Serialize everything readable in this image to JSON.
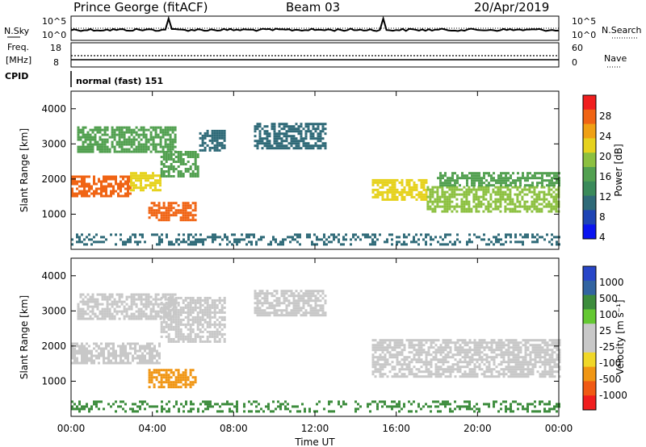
{
  "header": {
    "station": "Prince George (fitACF)",
    "beam": "Beam 03",
    "date": "20/Apr/2019"
  },
  "top_panels": {
    "nsky_label": "N.Sky",
    "nsky_ticks": [
      "10^5",
      "10^0"
    ],
    "nsearch_label": "N.Search",
    "nsearch_ticks": [
      "10^5",
      "10^0"
    ],
    "freq_label_1": "Freq.",
    "freq_label_2": "[MHz]",
    "freq_ticks": [
      "18",
      "8"
    ],
    "nave_label": "Nave",
    "nave_ticks": [
      "60",
      "0"
    ],
    "cpid_label": "CPID",
    "cpid_text": "normal (fast) 151"
  },
  "colors": {
    "power_scale": [
      "#0a14f0",
      "#1e44b4",
      "#2f6a78",
      "#3a8a5a",
      "#52a050",
      "#8cc040",
      "#e6d21e",
      "#f0a014",
      "#f06414",
      "#f01e1e"
    ],
    "velocity_scale": [
      "#2846c8",
      "#3264a0",
      "#3c8c3c",
      "#64c832",
      "#c8c8c8",
      "#c8c8c8",
      "#f0d728",
      "#f09614",
      "#f05a14",
      "#f01e1e"
    ]
  },
  "chart_data": [
    {
      "type": "heatmap",
      "panel": "power",
      "ylabel": "Slant Range [km]",
      "colorbar_label": "Power [dB]",
      "colorbar_ticks": [
        "28",
        "24",
        "20",
        "16",
        "12",
        "8",
        "4"
      ],
      "colorbar_range": [
        0,
        30
      ],
      "ylim": [
        0,
        4500
      ],
      "y_ticks": [
        "4000",
        "3000",
        "2000",
        "1000"
      ],
      "xlim": [
        0,
        24
      ],
      "regions": [
        {
          "t0": 0.0,
          "t1": 2.9,
          "r0": 1500,
          "r1": 2100,
          "value": 24
        },
        {
          "t0": 2.9,
          "t1": 4.4,
          "r0": 1700,
          "r1": 2200,
          "value": 20
        },
        {
          "t0": 4.4,
          "t1": 6.3,
          "r0": 2100,
          "r1": 2800,
          "value": 12
        },
        {
          "t0": 6.3,
          "t1": 7.5,
          "r0": 2800,
          "r1": 3400,
          "value": 8
        },
        {
          "t0": 0.3,
          "t1": 5.1,
          "r0": 2800,
          "r1": 3500,
          "value": 12
        },
        {
          "t0": 3.8,
          "t1": 6.1,
          "r0": 800,
          "r1": 1350,
          "value": 26
        },
        {
          "t0": 9.0,
          "t1": 12.5,
          "r0": 2900,
          "r1": 3600,
          "value": 8
        },
        {
          "t0": 14.8,
          "t1": 17.5,
          "r0": 1400,
          "r1": 2000,
          "value": 20
        },
        {
          "t0": 17.5,
          "t1": 24.0,
          "r0": 1100,
          "r1": 1800,
          "value": 16
        },
        {
          "t0": 18.0,
          "t1": 24.0,
          "r0": 1800,
          "r1": 2200,
          "value": 12
        },
        {
          "t0": 0.0,
          "t1": 24.0,
          "r0": 150,
          "r1": 450,
          "value": 6
        }
      ]
    },
    {
      "type": "heatmap",
      "panel": "velocity",
      "ylabel": "Slant Range [km]",
      "xlabel": "Time UT",
      "x_ticks": [
        "00:00",
        "04:00",
        "08:00",
        "12:00",
        "16:00",
        "20:00",
        "00:00"
      ],
      "colorbar_label": "Velocity [m s⁻¹]",
      "colorbar_ticks": [
        "1000",
        "500",
        "100",
        "25",
        "-25",
        "-100",
        "-500",
        "-1000"
      ],
      "ylim": [
        0,
        4500
      ],
      "y_ticks": [
        "4000",
        "3000",
        "2000",
        "1000"
      ],
      "xlim": [
        0,
        24
      ],
      "regions": [
        {
          "t0": 0.0,
          "t1": 4.4,
          "r0": 1500,
          "r1": 2100,
          "value": 0
        },
        {
          "t0": 4.4,
          "t1": 7.5,
          "r0": 2100,
          "r1": 3400,
          "value": 0
        },
        {
          "t0": 0.3,
          "t1": 5.1,
          "r0": 2800,
          "r1": 3500,
          "value": 0
        },
        {
          "t0": 3.8,
          "t1": 6.1,
          "r0": 800,
          "r1": 1350,
          "value": -300
        },
        {
          "t0": 9.0,
          "t1": 12.5,
          "r0": 2900,
          "r1": 3600,
          "value": 0
        },
        {
          "t0": 14.8,
          "t1": 24.0,
          "r0": 1100,
          "r1": 2200,
          "value": 0
        },
        {
          "t0": 0.0,
          "t1": 24.0,
          "r0": 150,
          "r1": 450,
          "value": 50
        }
      ]
    }
  ]
}
